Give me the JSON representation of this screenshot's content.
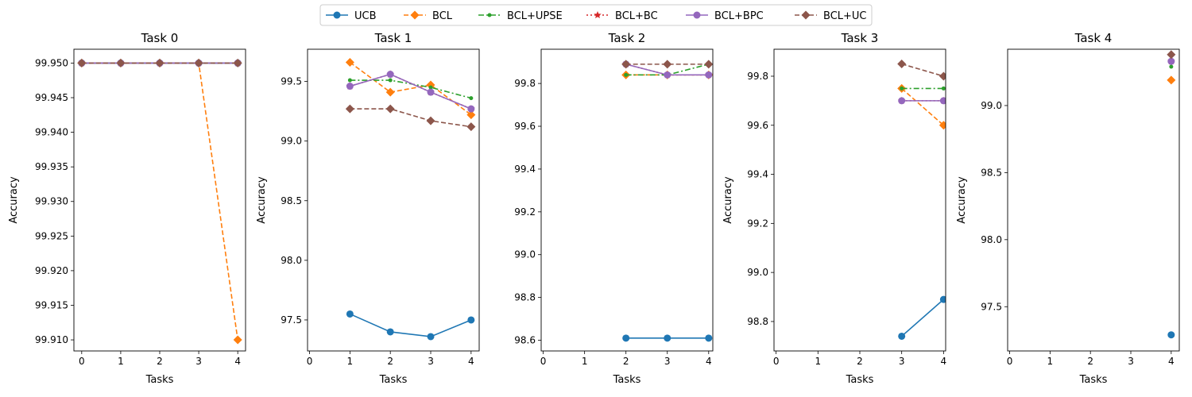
{
  "chart_data": {
    "type": "line",
    "legend": {
      "placement": "top-center",
      "ncol": 6
    },
    "series_styles": [
      {
        "name": "UCB",
        "color": "#1f77b4",
        "dash": "solid",
        "marker": "circle"
      },
      {
        "name": "BCL",
        "color": "#ff7f0e",
        "dash": "dashed",
        "marker": "diamond"
      },
      {
        "name": "BCL+UPSE",
        "color": "#2ca02c",
        "dash": "dashdot",
        "marker": "point"
      },
      {
        "name": "BCL+BC",
        "color": "#d62728",
        "dash": "dotted",
        "marker": "star"
      },
      {
        "name": "BCL+BPC",
        "color": "#9467bd",
        "dash": "solid",
        "marker": "circle"
      },
      {
        "name": "BCL+UC",
        "color": "#8c564b",
        "dash": "dashed",
        "marker": "diamond"
      }
    ],
    "subplots": [
      {
        "title": "Task 0",
        "xlabel": "Tasks",
        "ylabel": "Accuracy",
        "xlim": [
          -0.2,
          4.2
        ],
        "ylim": [
          99.9084,
          99.952
        ],
        "xticks": [
          "0",
          "1",
          "2",
          "3",
          "4"
        ],
        "yticks": [
          "99.910",
          "99.915",
          "99.920",
          "99.925",
          "99.930",
          "99.935",
          "99.940",
          "99.945",
          "99.950"
        ],
        "series": [
          {
            "name": "UCB",
            "x": [
              0,
              1,
              2,
              3,
              4
            ],
            "y": [
              99.95,
              99.95,
              99.95,
              99.95,
              99.95
            ]
          },
          {
            "name": "BCL",
            "x": [
              0,
              1,
              2,
              3,
              4
            ],
            "y": [
              99.95,
              99.95,
              99.95,
              99.95,
              99.91
            ]
          },
          {
            "name": "BCL+UPSE",
            "x": [
              0,
              1,
              2,
              3,
              4
            ],
            "y": [
              99.95,
              99.95,
              99.95,
              99.95,
              99.95
            ]
          },
          {
            "name": "BCL+BC",
            "x": [
              0,
              1,
              2,
              3,
              4
            ],
            "y": [
              99.95,
              99.95,
              99.95,
              99.95,
              99.95
            ]
          },
          {
            "name": "BCL+BPC",
            "x": [
              0,
              1,
              2,
              3,
              4
            ],
            "y": [
              99.95,
              99.95,
              99.95,
              99.95,
              99.95
            ]
          },
          {
            "name": "BCL+UC",
            "x": [
              0,
              1,
              2,
              3,
              4
            ],
            "y": [
              99.95,
              99.95,
              99.95,
              99.95,
              99.95
            ]
          }
        ]
      },
      {
        "title": "Task 1",
        "xlabel": "Tasks",
        "ylabel": "Accuracy",
        "xlim": [
          -0.05,
          4.2
        ],
        "ylim": [
          97.24,
          99.77
        ],
        "xticks": [
          "0",
          "1",
          "2",
          "3",
          "4"
        ],
        "yticks": [
          "97.5",
          "98.0",
          "98.5",
          "99.0",
          "99.5"
        ],
        "series": [
          {
            "name": "UCB",
            "x": [
              1,
              2,
              3,
              4
            ],
            "y": [
              97.55,
              97.4,
              97.36,
              97.5
            ]
          },
          {
            "name": "BCL",
            "x": [
              1,
              2,
              3,
              4
            ],
            "y": [
              99.66,
              99.41,
              99.47,
              99.22
            ]
          },
          {
            "name": "BCL+UPSE",
            "x": [
              1,
              2,
              3,
              4
            ],
            "y": [
              99.51,
              99.51,
              99.45,
              99.36
            ]
          },
          {
            "name": "BCL+BC",
            "x": [
              1,
              2,
              3,
              4
            ],
            "y": [
              99.46,
              99.56,
              99.41,
              99.27
            ]
          },
          {
            "name": "BCL+BPC",
            "x": [
              1,
              2,
              3,
              4
            ],
            "y": [
              99.46,
              99.56,
              99.41,
              99.27
            ]
          },
          {
            "name": "BCL+UC",
            "x": [
              1,
              2,
              3,
              4
            ],
            "y": [
              99.27,
              99.27,
              99.17,
              99.12
            ]
          }
        ]
      },
      {
        "title": "Task 2",
        "xlabel": "Tasks",
        "ylabel": "",
        "xlim": [
          -0.05,
          4.1
        ],
        "ylim": [
          98.55,
          99.96
        ],
        "xticks": [
          "0",
          "1",
          "2",
          "3",
          "4"
        ],
        "yticks": [
          "98.6",
          "98.8",
          "99.0",
          "99.2",
          "99.4",
          "99.6",
          "99.8"
        ],
        "series": [
          {
            "name": "UCB",
            "x": [
              2,
              3,
              4
            ],
            "y": [
              98.61,
              98.61,
              98.61
            ]
          },
          {
            "name": "BCL",
            "x": [
              2,
              3,
              4
            ],
            "y": [
              99.84,
              99.84,
              99.84
            ]
          },
          {
            "name": "BCL+UPSE",
            "x": [
              2,
              3,
              4
            ],
            "y": [
              99.84,
              99.84,
              99.89
            ]
          },
          {
            "name": "BCL+BC",
            "x": [
              2,
              3,
              4
            ],
            "y": [
              99.89,
              99.84,
              99.84
            ]
          },
          {
            "name": "BCL+BPC",
            "x": [
              2,
              3,
              4
            ],
            "y": [
              99.89,
              99.84,
              99.84
            ]
          },
          {
            "name": "BCL+UC",
            "x": [
              2,
              3,
              4
            ],
            "y": [
              99.89,
              99.89,
              99.89
            ]
          }
        ]
      },
      {
        "title": "Task 3",
        "xlabel": "Tasks",
        "ylabel": "Accuracy",
        "xlim": [
          -0.05,
          4.05
        ],
        "ylim": [
          98.68,
          99.91
        ],
        "xticks": [
          "0",
          "1",
          "2",
          "3",
          "4"
        ],
        "yticks": [
          "98.8",
          "99.0",
          "99.2",
          "99.4",
          "99.6",
          "99.8"
        ],
        "series": [
          {
            "name": "UCB",
            "x": [
              3,
              4
            ],
            "y": [
              98.74,
              98.89
            ]
          },
          {
            "name": "BCL",
            "x": [
              3,
              4
            ],
            "y": [
              99.75,
              99.6
            ]
          },
          {
            "name": "BCL+UPSE",
            "x": [
              3,
              4
            ],
            "y": [
              99.75,
              99.75
            ]
          },
          {
            "name": "BCL+BC",
            "x": [
              3,
              4
            ],
            "y": [
              99.7,
              99.7
            ]
          },
          {
            "name": "BCL+BPC",
            "x": [
              3,
              4
            ],
            "y": [
              99.7,
              99.7
            ]
          },
          {
            "name": "BCL+UC",
            "x": [
              3,
              4
            ],
            "y": [
              99.85,
              99.8
            ]
          }
        ]
      },
      {
        "title": "Task 4",
        "xlabel": "Tasks",
        "ylabel": "Accuracy",
        "xlim": [
          -0.05,
          4.2
        ],
        "ylim": [
          97.17,
          99.42
        ],
        "xticks": [
          "0",
          "1",
          "2",
          "3",
          "4"
        ],
        "yticks": [
          "97.5",
          "98.0",
          "98.5",
          "99.0"
        ],
        "series": [
          {
            "name": "UCB",
            "x": [
              4
            ],
            "y": [
              97.29
            ]
          },
          {
            "name": "BCL",
            "x": [
              4
            ],
            "y": [
              99.19
            ]
          },
          {
            "name": "BCL+UPSE",
            "x": [
              4
            ],
            "y": [
              99.29
            ]
          },
          {
            "name": "BCL+BC",
            "x": [
              4
            ],
            "y": [
              99.33
            ]
          },
          {
            "name": "BCL+BPC",
            "x": [
              4
            ],
            "y": [
              99.33
            ]
          },
          {
            "name": "BCL+UC",
            "x": [
              4
            ],
            "y": [
              99.38
            ]
          }
        ]
      }
    ]
  }
}
